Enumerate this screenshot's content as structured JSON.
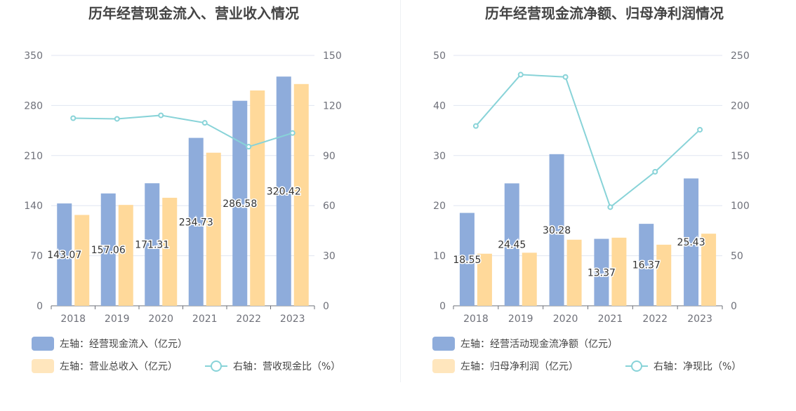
{
  "colors": {
    "bar_primary": "#8eacdb",
    "bar_secondary": "#ffd99a",
    "bar_secondary_legend": "#ffe6bd",
    "line": "#88d3d8",
    "axis": "#6e7079",
    "grid": "#e0e6f1"
  },
  "chart_data": [
    {
      "type": "bar",
      "title": "历年经营现金流入、营业收入情况",
      "categories": [
        "2018",
        "2019",
        "2020",
        "2021",
        "2022",
        "2023"
      ],
      "y_left": {
        "min": 0,
        "max": 350,
        "ticks": [
          "0",
          "70",
          "140",
          "210",
          "280",
          "350"
        ]
      },
      "y_right": {
        "min": 0,
        "max": 150,
        "ticks": [
          "0",
          "30",
          "60",
          "90",
          "120",
          "150"
        ]
      },
      "series": [
        {
          "name": "左轴：经营现金流入（亿元）",
          "kind": "bar",
          "axis": "left",
          "values": [
            143.07,
            157.06,
            171.31,
            234.73,
            286.58,
            320.42
          ],
          "labels": [
            "143.07",
            "157.06",
            "171.31",
            "234.73",
            "286.58",
            "320.42"
          ]
        },
        {
          "name": "左轴：营业总收入（亿元）",
          "kind": "bar",
          "axis": "left",
          "values": [
            127,
            141,
            151,
            214,
            301,
            310
          ]
        },
        {
          "name": "右轴：营收现金比（%）",
          "kind": "line",
          "axis": "right",
          "values": [
            112.4,
            112.0,
            114.1,
            109.6,
            95.3,
            103.5
          ]
        }
      ]
    },
    {
      "type": "bar",
      "title": "历年经营现金流净额、归母净利润情况",
      "categories": [
        "2018",
        "2019",
        "2020",
        "2021",
        "2022",
        "2023"
      ],
      "y_left": {
        "min": 0,
        "max": 50,
        "ticks": [
          "0",
          "10",
          "20",
          "30",
          "40",
          "50"
        ]
      },
      "y_right": {
        "min": 0,
        "max": 250,
        "ticks": [
          "0",
          "50",
          "100",
          "150",
          "200",
          "250"
        ]
      },
      "series": [
        {
          "name": "左轴：经营活动现金流净额（亿元）",
          "kind": "bar",
          "axis": "left",
          "values": [
            18.55,
            24.45,
            30.28,
            13.37,
            16.37,
            25.43
          ],
          "labels": [
            "18.55",
            "24.45",
            "30.28",
            "13.37",
            "16.37",
            "25.43"
          ]
        },
        {
          "name": "左轴：归母净利润（亿元）",
          "kind": "bar",
          "axis": "left",
          "values": [
            10.4,
            10.6,
            13.2,
            13.6,
            12.2,
            14.4
          ]
        },
        {
          "name": "右轴：净现比（%）",
          "kind": "line",
          "axis": "right",
          "values": [
            179.5,
            230.8,
            228.5,
            98.5,
            133.8,
            175.8
          ]
        }
      ]
    }
  ]
}
